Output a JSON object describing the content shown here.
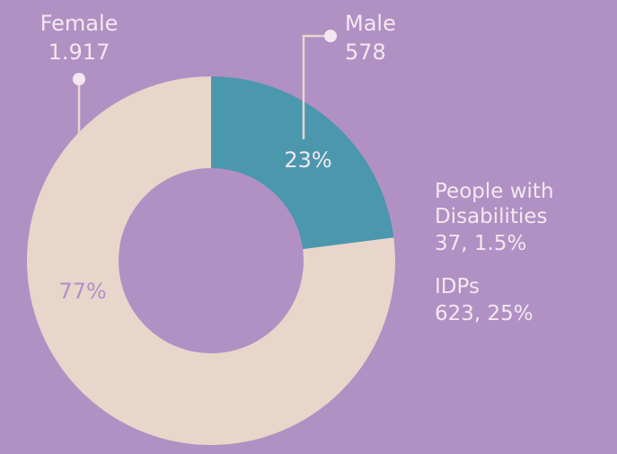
{
  "chart_data": {
    "type": "donut",
    "categories": [
      "Male",
      "Female"
    ],
    "values": [
      23,
      77
    ],
    "value_labels": [
      "23%",
      "77%"
    ],
    "count_labels": [
      "578",
      "1.917"
    ],
    "colors": [
      "#4b97ae",
      "#e8d6ca"
    ],
    "annotations": [
      {
        "title": [
          "People with",
          "Disabilities"
        ],
        "text": "37, 1.5%"
      },
      {
        "title": [
          "IDPs"
        ],
        "text": "623, 25%"
      }
    ]
  }
}
